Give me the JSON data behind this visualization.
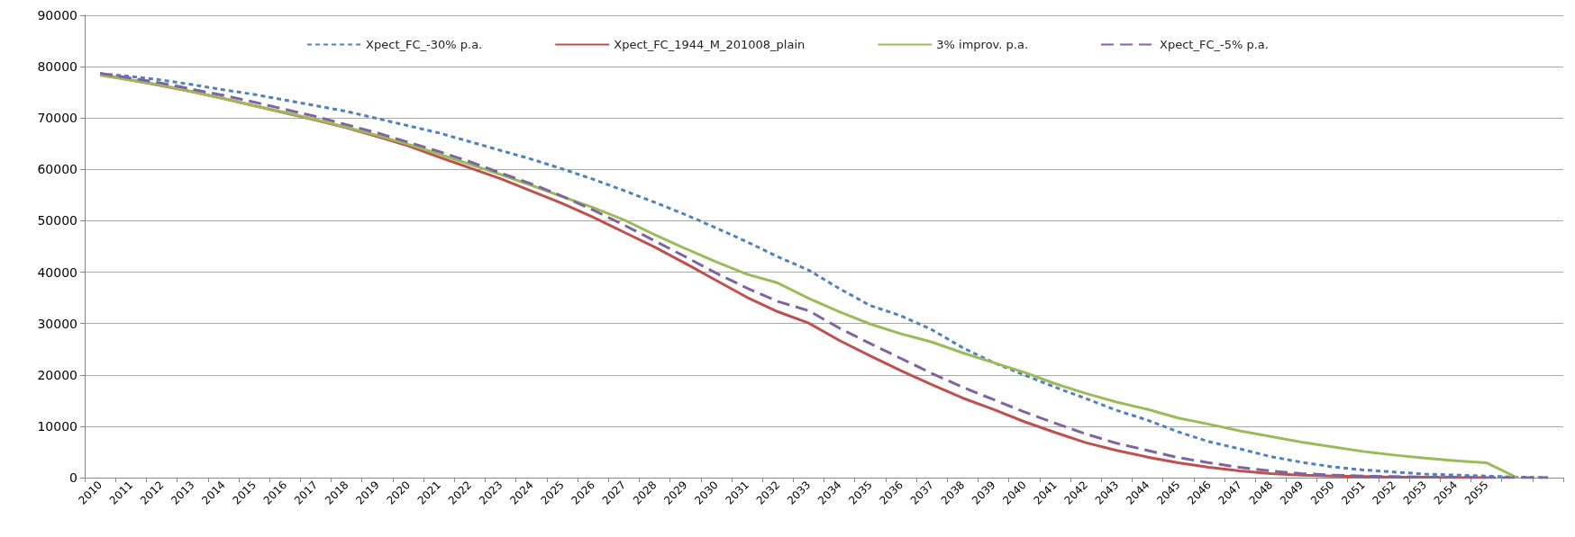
{
  "chart_data": {
    "type": "line",
    "categories": [
      "2010",
      "2011",
      "2012",
      "2013",
      "2014",
      "2015",
      "2016",
      "2017",
      "2018",
      "2019",
      "2020",
      "2021",
      "2022",
      "2023",
      "2024",
      "2025",
      "2026",
      "2027",
      "2028",
      "2029",
      "2030",
      "2031",
      "2032",
      "2033",
      "2034",
      "2035",
      "2036",
      "2037",
      "2038",
      "2039",
      "2040",
      "2041",
      "2042",
      "2043",
      "2044",
      "2045",
      "2046",
      "2047",
      "2048",
      "2049",
      "2050",
      "2051",
      "2052",
      "2053",
      "2054",
      "2055",
      null,
      null
    ],
    "series": [
      {
        "name": "Xpect_FC_-30% p.a.",
        "color": "#4f81bd",
        "line_style": "dotted",
        "values": [
          78600,
          78100,
          77400,
          76500,
          75500,
          74600,
          73500,
          72400,
          71300,
          69900,
          68500,
          67100,
          65400,
          63700,
          62000,
          60100,
          58100,
          55900,
          53600,
          51200,
          48600,
          45900,
          43000,
          40400,
          36800,
          33500,
          31500,
          28800,
          25300,
          22400,
          20000,
          17600,
          15400,
          13100,
          11200,
          8900,
          7000,
          5600,
          4100,
          3000,
          2100,
          1500,
          1100,
          700,
          500,
          300,
          100,
          0
        ]
      },
      {
        "name": "Xpect_FC_1944_M_201008_plain",
        "color": "#c0504d",
        "line_style": "solid",
        "values": [
          78500,
          77400,
          76300,
          75100,
          73800,
          72400,
          71000,
          69600,
          68100,
          66400,
          64600,
          62400,
          60300,
          58200,
          55800,
          53400,
          50700,
          47800,
          44900,
          41700,
          38400,
          35100,
          32300,
          30100,
          26700,
          23700,
          20800,
          18100,
          15500,
          13300,
          10900,
          8800,
          6800,
          5300,
          4000,
          2900,
          2000,
          1300,
          800,
          500,
          300,
          200,
          100,
          100,
          0,
          0,
          null,
          null
        ]
      },
      {
        "name": "3% improv. p.a.",
        "color": "#9bbb59",
        "line_style": "solid",
        "values": [
          78300,
          77400,
          76400,
          75100,
          73800,
          72400,
          71100,
          69700,
          68200,
          66600,
          64900,
          63000,
          61000,
          59000,
          56900,
          54700,
          52600,
          50200,
          47300,
          44600,
          42000,
          39600,
          37900,
          34900,
          32300,
          29900,
          28000,
          26400,
          24300,
          22400,
          20500,
          18300,
          16400,
          14700,
          13300,
          11600,
          10400,
          9100,
          8000,
          6900,
          6000,
          5100,
          4400,
          3800,
          3300,
          2900,
          0,
          null
        ]
      },
      {
        "name": "Xpect_FC_-5% p.a.",
        "color": "#8064a2",
        "line_style": "dashed",
        "values": [
          78700,
          77800,
          76800,
          75600,
          74400,
          73100,
          71700,
          70300,
          68700,
          67100,
          65300,
          63500,
          61500,
          59300,
          57200,
          54800,
          52100,
          49200,
          46100,
          43000,
          39800,
          36900,
          34300,
          32500,
          29100,
          26100,
          23200,
          20300,
          17600,
          15200,
          12800,
          10600,
          8500,
          6700,
          5300,
          3900,
          2900,
          2000,
          1300,
          800,
          500,
          300,
          200,
          100,
          100,
          0,
          0,
          0
        ]
      }
    ],
    "ylim": [
      0,
      90000
    ],
    "yticks": [
      0,
      10000,
      20000,
      30000,
      40000,
      50000,
      60000,
      70000,
      80000,
      90000
    ],
    "grid": "y",
    "legend": "top",
    "marker": "none"
  }
}
